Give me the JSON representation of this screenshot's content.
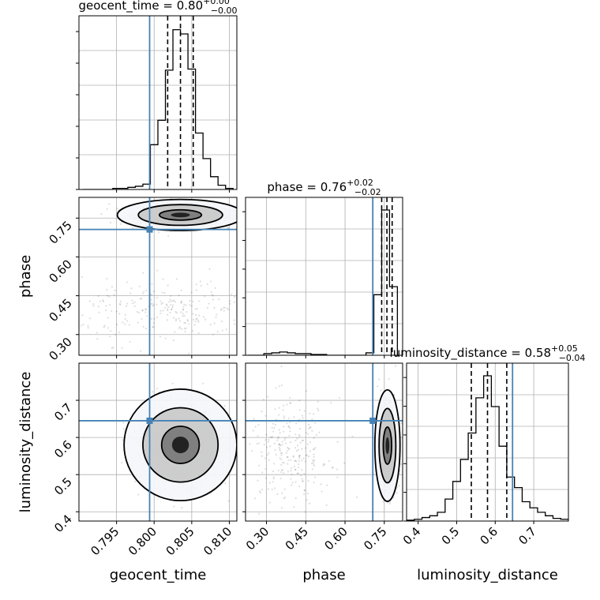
{
  "chart_data": {
    "type": "corner",
    "parameters": [
      "geocent_time",
      "phase",
      "luminosity_distance"
    ],
    "truth_color": "#4682b4",
    "truths": {
      "geocent_time": 0.7994,
      "phase": 0.706,
      "luminosity_distance": 0.645
    },
    "marginals": [
      {
        "param": "geocent_time",
        "title_main": "geocent_time = 0.80",
        "title_sup": "+0.00",
        "title_sub": "−0.00",
        "xlim": [
          0.79,
          0.811
        ],
        "quantiles": [
          0.8018,
          0.8035,
          0.8052
        ],
        "bin_edges": [
          0.7905,
          0.7915,
          0.7925,
          0.7935,
          0.7945,
          0.7955,
          0.7965,
          0.7975,
          0.7985,
          0.7995,
          0.8005,
          0.8015,
          0.8025,
          0.8035,
          0.8045,
          0.8055,
          0.8065,
          0.8075,
          0.8085,
          0.8095,
          0.8105
        ],
        "counts": [
          0,
          0,
          0,
          0,
          1,
          1,
          2,
          3,
          5,
          42,
          65,
          112,
          150,
          146,
          113,
          53,
          29,
          12,
          4,
          1
        ]
      },
      {
        "param": "phase",
        "title_main": "phase = 0.76",
        "title_sup": "+0.02",
        "title_sub": "−0.02",
        "xlim": [
          0.22,
          0.82
        ],
        "quantiles": [
          0.74,
          0.76,
          0.78
        ],
        "bin_edges": [
          0.23,
          0.26,
          0.29,
          0.32,
          0.35,
          0.38,
          0.41,
          0.44,
          0.47,
          0.5,
          0.53,
          0.56,
          0.59,
          0.62,
          0.65,
          0.68,
          0.71,
          0.74,
          0.77,
          0.8
        ],
        "counts": [
          0,
          0,
          2,
          3,
          4,
          3,
          2,
          2,
          1,
          1,
          0,
          0,
          0,
          0,
          0,
          3,
          75,
          180,
          85
        ]
      },
      {
        "param": "luminosity_distance",
        "title_main": "luminosity_distance = 0.58",
        "title_sup": "+0.05",
        "title_sub": "−0.04",
        "xlim": [
          0.37,
          0.79
        ],
        "quantiles": [
          0.538,
          0.58,
          0.63
        ],
        "bin_edges": [
          0.37,
          0.39,
          0.41,
          0.43,
          0.45,
          0.47,
          0.49,
          0.51,
          0.53,
          0.55,
          0.57,
          0.59,
          0.61,
          0.63,
          0.65,
          0.67,
          0.69,
          0.71,
          0.73,
          0.75,
          0.77,
          0.79
        ],
        "counts": [
          1,
          2,
          4,
          6,
          10,
          25,
          45,
          70,
          100,
          140,
          165,
          130,
          85,
          50,
          38,
          22,
          15,
          10,
          6,
          3,
          2
        ]
      }
    ],
    "joint": [
      {
        "x": "geocent_time",
        "y": "phase",
        "main_mode": {
          "x": 0.8035,
          "y": 0.762,
          "sx": 0.0028,
          "sy": 0.02
        },
        "secondary_cloud": {
          "x": 0.8025,
          "y": 0.39,
          "sx": 0.006,
          "sy": 0.06
        },
        "contour_levels": [
          1.0,
          2.0,
          3.0
        ]
      },
      {
        "x": "geocent_time",
        "y": "luminosity_distance",
        "main_mode": {
          "x": 0.8035,
          "y": 0.58,
          "sx": 0.0025,
          "sy": 0.05
        },
        "contour_levels": [
          1.0,
          2.0,
          3.0
        ]
      },
      {
        "x": "phase",
        "y": "luminosity_distance",
        "main_mode": {
          "x": 0.762,
          "y": 0.578,
          "sx": 0.016,
          "sy": 0.05
        },
        "secondary_cloud": {
          "x": 0.39,
          "y": 0.56,
          "sx": 0.08,
          "sy": 0.07
        },
        "contour_levels": [
          1.0,
          2.0,
          3.0
        ]
      }
    ],
    "axes": {
      "geocent_time": {
        "range": [
          0.79,
          0.811
        ],
        "ticks": [
          0.795,
          0.8,
          0.805,
          0.81
        ],
        "tick_labels": [
          "0.795",
          "0.800",
          "0.805",
          "0.810"
        ]
      },
      "phase_as_x": {
        "range": [
          0.22,
          0.82
        ],
        "ticks": [
          0.3,
          0.45,
          0.6,
          0.75
        ],
        "tick_labels": [
          "0.30",
          "0.45",
          "0.60",
          "0.75"
        ]
      },
      "phase_as_y": {
        "range": [
          0.22,
          0.83
        ],
        "ticks": [
          0.3,
          0.45,
          0.6,
          0.75
        ],
        "tick_labels": [
          "0.30",
          "0.45",
          "0.60",
          "0.75"
        ]
      },
      "luminosity_distance_as_y": {
        "range": [
          0.375,
          0.8
        ],
        "ticks": [
          0.4,
          0.5,
          0.6,
          0.7
        ],
        "tick_labels": [
          "0.4",
          "0.5",
          "0.6",
          "0.7"
        ]
      },
      "luminosity_distance_as_x": {
        "range": [
          0.37,
          0.79
        ],
        "ticks": [
          0.4,
          0.5,
          0.6,
          0.7
        ],
        "tick_labels": [
          "0.4",
          "0.5",
          "0.6",
          "0.7"
        ]
      }
    },
    "xlabels": [
      "geocent_time",
      "phase",
      "luminosity_distance"
    ],
    "ylabels": [
      "phase",
      "luminosity_distance"
    ],
    "grid": true
  }
}
